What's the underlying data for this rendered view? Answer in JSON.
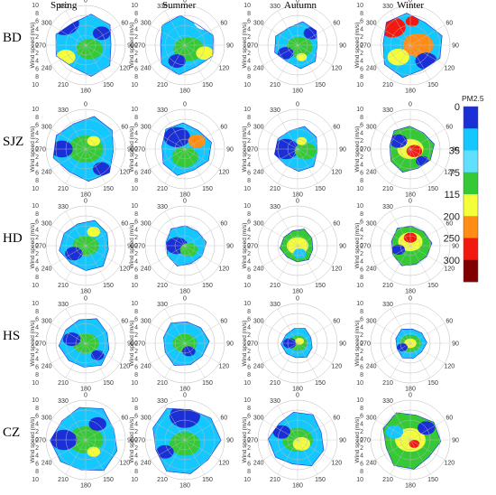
{
  "chart_data": {
    "type": "heatmap",
    "subtype": "polar-bivariate",
    "seasons": [
      "Spring",
      "Summer",
      "Autumn",
      "Winter"
    ],
    "sites": [
      "BD",
      "SJZ",
      "HD",
      "HS",
      "CZ"
    ],
    "radial_axis": {
      "label": "Wind speed (m/s)",
      "range": [
        0,
        10
      ],
      "ticks": [
        0,
        2,
        4,
        6,
        8,
        10
      ]
    },
    "angular_axis": {
      "ticks": [
        0,
        60,
        90,
        120,
        150,
        180,
        210,
        240,
        270,
        300,
        330
      ]
    },
    "colorbar": {
      "title": "PM2.5",
      "ticks": [
        0,
        35,
        75,
        115,
        200,
        250,
        300
      ],
      "colors": [
        "#1a2fd6",
        "#14c8ff",
        "#5fe0ff",
        "#34c935",
        "#f4ff3a",
        "#ff8c14",
        "#f21a10",
        "#800000"
      ]
    },
    "panels": [
      {
        "site": "BD",
        "season": "Spring",
        "extent": 0.82,
        "base": "#14c8ff",
        "dominant_level": "35-75",
        "hotspots": [
          [
            -0.55,
            -0.55,
            0.35,
            "#1a2fd6"
          ],
          [
            0.1,
            0.1,
            0.3,
            "#34c935"
          ],
          [
            -0.5,
            0.3,
            0.22,
            "#f4ff3a"
          ],
          [
            0.4,
            -0.3,
            0.2,
            "#1a2fd6"
          ]
        ]
      },
      {
        "site": "BD",
        "season": "Summer",
        "extent": 0.78,
        "base": "#14c8ff",
        "dominant_level": "35-75",
        "hotspots": [
          [
            0.1,
            0.1,
            0.35,
            "#34c935"
          ],
          [
            0.5,
            -0.6,
            0.25,
            "#ffffff"
          ],
          [
            -0.2,
            0.4,
            0.2,
            "#1a2fd6"
          ],
          [
            0.5,
            0.2,
            0.2,
            "#f4ff3a"
          ]
        ]
      },
      {
        "site": "BD",
        "season": "Autumn",
        "extent": 0.62,
        "base": "#14c8ff",
        "dominant_level": "35-75",
        "hotspots": [
          [
            0.05,
            0.05,
            0.3,
            "#34c935"
          ],
          [
            0.35,
            -0.3,
            0.18,
            "#1a2fd6"
          ],
          [
            -0.3,
            0.2,
            0.18,
            "#1a2fd6"
          ],
          [
            0.1,
            0.3,
            0.12,
            "#f4ff3a"
          ]
        ]
      },
      {
        "site": "BD",
        "season": "Winter",
        "extent": 0.85,
        "base": "#14c8ff",
        "dominant_level": ">115",
        "hotspots": [
          [
            -0.45,
            -0.45,
            0.3,
            "#f21a10"
          ],
          [
            0.2,
            0.0,
            0.35,
            "#ff8c14"
          ],
          [
            0.4,
            0.4,
            0.25,
            "#1a2fd6"
          ],
          [
            -0.3,
            0.3,
            0.25,
            "#f4ff3a"
          ],
          [
            0.05,
            -0.6,
            0.15,
            "#f21a10"
          ]
        ]
      },
      {
        "site": "SJZ",
        "season": "Spring",
        "extent": 0.86,
        "base": "#14c8ff",
        "dominant_level": "35-75",
        "hotspots": [
          [
            0.0,
            0.0,
            0.4,
            "#34c935"
          ],
          [
            -0.6,
            0.0,
            0.25,
            "#1a2fd6"
          ],
          [
            0.4,
            0.5,
            0.2,
            "#1a2fd6"
          ],
          [
            0.2,
            -0.2,
            0.15,
            "#f4ff3a"
          ]
        ]
      },
      {
        "site": "SJZ",
        "season": "Summer",
        "extent": 0.7,
        "base": "#14c8ff",
        "dominant_level": "35-75",
        "hotspots": [
          [
            -0.2,
            -0.3,
            0.3,
            "#1a2fd6"
          ],
          [
            0.3,
            -0.2,
            0.2,
            "#ff8c14"
          ],
          [
            0.0,
            0.2,
            0.3,
            "#34c935"
          ]
        ]
      },
      {
        "site": "SJZ",
        "season": "Autumn",
        "extent": 0.6,
        "base": "#14c8ff",
        "dominant_level": "35-75",
        "hotspots": [
          [
            -0.3,
            0.0,
            0.3,
            "#1a2fd6"
          ],
          [
            0.2,
            0.05,
            0.25,
            "#34c935"
          ],
          [
            0.1,
            -0.2,
            0.12,
            "#f4ff3a"
          ]
        ]
      },
      {
        "site": "SJZ",
        "season": "Winter",
        "extent": 0.62,
        "base": "#34c935",
        "dominant_level": ">115",
        "hotspots": [
          [
            0.0,
            0.0,
            0.3,
            "#f4ff3a"
          ],
          [
            0.1,
            0.05,
            0.18,
            "#f21a10"
          ],
          [
            -0.3,
            -0.2,
            0.2,
            "#1a2fd6"
          ],
          [
            0.3,
            0.3,
            0.15,
            "#1a2fd6"
          ]
        ]
      },
      {
        "site": "HD",
        "season": "Spring",
        "extent": 0.68,
        "base": "#14c8ff",
        "dominant_level": "35-75",
        "hotspots": [
          [
            0.0,
            0.0,
            0.3,
            "#34c935"
          ],
          [
            -0.3,
            0.2,
            0.2,
            "#1a2fd6"
          ],
          [
            0.2,
            -0.35,
            0.15,
            "#f4ff3a"
          ]
        ]
      },
      {
        "site": "HD",
        "season": "Summer",
        "extent": 0.55,
        "base": "#14c8ff",
        "dominant_level": "35-75",
        "hotspots": [
          [
            -0.2,
            0.0,
            0.25,
            "#1a2fd6"
          ],
          [
            0.1,
            0.1,
            0.2,
            "#34c935"
          ]
        ]
      },
      {
        "site": "HD",
        "season": "Autumn",
        "extent": 0.45,
        "base": "#34c935",
        "dominant_level": "75-115",
        "hotspots": [
          [
            0.0,
            0.0,
            0.25,
            "#f4ff3a"
          ],
          [
            0.05,
            0.2,
            0.15,
            "#14c8ff"
          ]
        ]
      },
      {
        "site": "HD",
        "season": "Winter",
        "extent": 0.55,
        "base": "#34c935",
        "dominant_level": ">115",
        "hotspots": [
          [
            0.0,
            -0.1,
            0.28,
            "#f4ff3a"
          ],
          [
            0.0,
            -0.2,
            0.15,
            "#f21a10"
          ],
          [
            -0.3,
            0.1,
            0.15,
            "#1a2fd6"
          ]
        ]
      },
      {
        "site": "HS",
        "season": "Spring",
        "extent": 0.68,
        "base": "#14c8ff",
        "dominant_level": "35-75",
        "hotspots": [
          [
            0.0,
            0.0,
            0.3,
            "#34c935"
          ],
          [
            -0.35,
            -0.1,
            0.2,
            "#1a2fd6"
          ],
          [
            0.3,
            0.3,
            0.15,
            "#1a2fd6"
          ]
        ]
      },
      {
        "site": "HS",
        "season": "Summer",
        "extent": 0.62,
        "base": "#14c8ff",
        "dominant_level": "35-75",
        "hotspots": [
          [
            0.0,
            0.0,
            0.28,
            "#34c935"
          ],
          [
            0.1,
            0.2,
            0.15,
            "#1a2fd6"
          ]
        ]
      },
      {
        "site": "HS",
        "season": "Autumn",
        "extent": 0.42,
        "base": "#14c8ff",
        "dominant_level": "35-75",
        "hotspots": [
          [
            0.0,
            0.0,
            0.22,
            "#34c935"
          ],
          [
            -0.2,
            0.0,
            0.15,
            "#1a2fd6"
          ],
          [
            0.05,
            -0.05,
            0.1,
            "#f4ff3a"
          ]
        ]
      },
      {
        "site": "HS",
        "season": "Winter",
        "extent": 0.42,
        "base": "#14c8ff",
        "dominant_level": "75-115",
        "hotspots": [
          [
            0.0,
            0.0,
            0.25,
            "#34c935"
          ],
          [
            0.0,
            0.0,
            0.14,
            "#f4ff3a"
          ],
          [
            -0.2,
            0.1,
            0.12,
            "#1a2fd6"
          ]
        ]
      },
      {
        "site": "CZ",
        "season": "Spring",
        "extent": 0.9,
        "base": "#14c8ff",
        "dominant_level": "35-75",
        "hotspots": [
          [
            0.0,
            0.0,
            0.4,
            "#34c935"
          ],
          [
            -0.55,
            0.0,
            0.3,
            "#1a2fd6"
          ],
          [
            0.3,
            -0.4,
            0.2,
            "#1a2fd6"
          ],
          [
            0.2,
            0.3,
            0.15,
            "#f4ff3a"
          ]
        ]
      },
      {
        "site": "CZ",
        "season": "Summer",
        "extent": 0.92,
        "base": "#14c8ff",
        "dominant_level": "35-75",
        "hotspots": [
          [
            0.0,
            -0.6,
            0.35,
            "#1a2fd6"
          ],
          [
            0.0,
            0.1,
            0.35,
            "#34c935"
          ],
          [
            -0.5,
            0.3,
            0.2,
            "#1a2fd6"
          ]
        ]
      },
      {
        "site": "CZ",
        "season": "Autumn",
        "extent": 0.75,
        "base": "#14c8ff",
        "dominant_level": "35-75",
        "hotspots": [
          [
            0.0,
            0.0,
            0.35,
            "#34c935"
          ],
          [
            0.1,
            0.1,
            0.2,
            "#f4ff3a"
          ],
          [
            -0.4,
            -0.2,
            0.2,
            "#1a2fd6"
          ]
        ]
      },
      {
        "site": "CZ",
        "season": "Winter",
        "extent": 0.78,
        "base": "#34c935",
        "dominant_level": "75-115",
        "hotspots": [
          [
            0.0,
            0.0,
            0.35,
            "#f4ff3a"
          ],
          [
            -0.4,
            -0.2,
            0.2,
            "#14c8ff"
          ],
          [
            0.4,
            -0.3,
            0.2,
            "#1a2fd6"
          ],
          [
            0.1,
            0.1,
            0.12,
            "#f21a10"
          ]
        ]
      }
    ]
  }
}
